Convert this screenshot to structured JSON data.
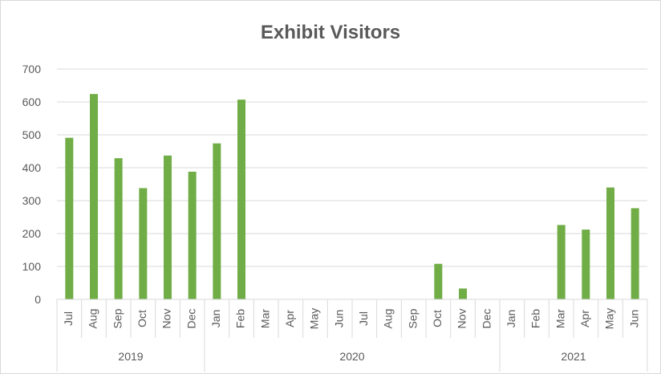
{
  "chart_data": {
    "type": "bar",
    "title": "Exhibit Visitors",
    "ylim": [
      0,
      700
    ],
    "yticks": [
      0,
      100,
      200,
      300,
      400,
      500,
      600,
      700
    ],
    "grid": true,
    "legend": "none",
    "bar_color": "#70AD47",
    "gridline_color": "#D9D9D9",
    "categories": [
      "Jul",
      "Aug",
      "Sep",
      "Oct",
      "Nov",
      "Dec",
      "Jan",
      "Feb",
      "Mar",
      "Apr",
      "May",
      "Jun",
      "Jul",
      "Aug",
      "Sep",
      "Oct",
      "Nov",
      "Dec",
      "Jan",
      "Feb",
      "Mar",
      "Apr",
      "May",
      "Jun"
    ],
    "values": [
      491,
      624,
      429,
      338,
      437,
      388,
      474,
      607,
      0,
      0,
      0,
      0,
      0,
      0,
      0,
      108,
      33,
      0,
      0,
      0,
      226,
      212,
      340,
      277
    ],
    "groups": [
      {
        "label": "2019",
        "count": 6
      },
      {
        "label": "2020",
        "count": 12
      },
      {
        "label": "2021",
        "count": 6
      }
    ]
  }
}
